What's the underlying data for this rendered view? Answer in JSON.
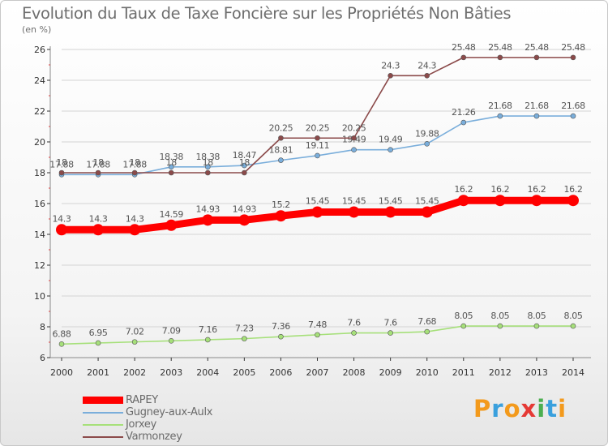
{
  "header": {
    "title": "Evolution du Taux de Taxe Foncière sur les Propriétés Non Bâties",
    "subtitle": "(en %)"
  },
  "logo": {
    "letters": [
      "P",
      "r",
      "o",
      "x",
      "i",
      "t",
      "i"
    ],
    "colors": [
      "#f39a1c",
      "#3aa0dd",
      "#f39a1c",
      "#e53935",
      "#4caf50",
      "#3aa0dd",
      "#f39a1c"
    ]
  },
  "chart_data": {
    "type": "line",
    "x": [
      "2000",
      "2001",
      "2002",
      "2003",
      "2004",
      "2005",
      "2006",
      "2007",
      "2008",
      "2009",
      "2010",
      "2011",
      "2012",
      "2013",
      "2014"
    ],
    "yticks": [
      "6",
      "8",
      "10",
      "12",
      "14",
      "16",
      "18",
      "20",
      "22",
      "24",
      "26"
    ],
    "ylim": [
      6,
      26
    ],
    "grid": true,
    "legend_position": "bottom-left",
    "series": [
      {
        "name": "RAPEY",
        "color": "#ff0000",
        "emphasis": true,
        "values": [
          14.3,
          14.3,
          14.3,
          14.59,
          14.93,
          14.93,
          15.2,
          15.45,
          15.45,
          15.45,
          15.45,
          16.2,
          16.2,
          16.2,
          16.2
        ],
        "labels": [
          "14.3",
          "14.3",
          "14.3",
          "14.59",
          "14.93",
          "14.93",
          "15.2",
          "15.45",
          "15.45",
          "15.45",
          "15.45",
          "16.2",
          "16.2",
          "16.2",
          "16.2"
        ]
      },
      {
        "name": "Gugney-aux-Aulx",
        "color": "#7aaedb",
        "emphasis": false,
        "values": [
          17.88,
          17.88,
          17.88,
          18.38,
          18.38,
          18.47,
          18.81,
          19.11,
          19.49,
          19.49,
          19.88,
          21.26,
          21.68,
          21.68,
          21.68
        ],
        "labels": [
          "17.88",
          "17.88",
          "17.88",
          "18.38",
          "18.38",
          "18.47",
          "18.81",
          "19.11",
          "19.49",
          "19.49",
          "19.88",
          "21.26",
          "21.68",
          "21.68",
          "21.68"
        ]
      },
      {
        "name": "Jorxey",
        "color": "#a6e07a",
        "emphasis": false,
        "values": [
          6.88,
          6.95,
          7.02,
          7.09,
          7.16,
          7.23,
          7.36,
          7.48,
          7.6,
          7.6,
          7.68,
          8.05,
          8.05,
          8.05,
          8.05
        ],
        "labels": [
          "6.88",
          "6.95",
          "7.02",
          "7.09",
          "7.16",
          "7.23",
          "7.36",
          "7.48",
          "7.6",
          "7.6",
          "7.68",
          "8.05",
          "8.05",
          "8.05",
          "8.05"
        ]
      },
      {
        "name": "Varmonzey",
        "color": "#8b4a4a",
        "emphasis": false,
        "values": [
          18,
          18,
          18,
          18,
          18,
          18,
          20.25,
          20.25,
          20.25,
          24.3,
          24.3,
          25.48,
          25.48,
          25.48,
          25.48
        ],
        "labels": [
          "18",
          "18",
          "18",
          "18",
          "18",
          "18",
          "20.25",
          "20.25",
          "20.25",
          "24.3",
          "24.3",
          "25.48",
          "25.48",
          "25.48",
          "25.48"
        ]
      }
    ]
  }
}
